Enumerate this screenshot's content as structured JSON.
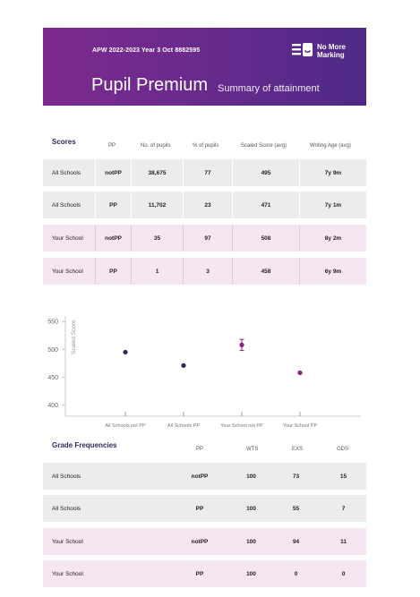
{
  "header": {
    "meta": "APW 2022-2023 Year 3 Oct 8882595",
    "title": "Pupil Premium",
    "subtitle": "Summary of attainment",
    "logo_line1": "No More",
    "logo_line2": "Marking"
  },
  "scores": {
    "section_title": "Scores",
    "columns": [
      "PP",
      "No. of pupils",
      "% of pupils",
      "Scaled Score (avg)",
      "Writing Age (avg)"
    ],
    "rows": [
      {
        "label": "All Schools",
        "pp": "notPP",
        "pupils": "38,675",
        "pct": "77",
        "score": "495",
        "age": "7y 9m"
      },
      {
        "label": "All Schools",
        "pp": "PP",
        "pupils": "11,702",
        "pct": "23",
        "score": "471",
        "age": "7y 1m"
      },
      {
        "label": "Your School",
        "pp": "notPP",
        "pupils": "35",
        "pct": "97",
        "score": "508",
        "age": "8y 2m"
      },
      {
        "label": "Your School",
        "pp": "PP",
        "pupils": "1",
        "pct": "3",
        "score": "458",
        "age": "6y 9m"
      }
    ]
  },
  "chart_data": {
    "type": "scatter",
    "ylabel": "Scaled Score",
    "ylim": [
      380,
      560
    ],
    "yticks": [
      400,
      450,
      500,
      550
    ],
    "categories": [
      "All Schools not PP",
      "All Schools PP",
      "Your School not PP",
      "Your School PP"
    ],
    "values": [
      495,
      471,
      508,
      458
    ],
    "error_bars": [
      null,
      null,
      [
        498,
        518
      ],
      null
    ],
    "colors": [
      "#2e2660",
      "#2e2660",
      "#8a1f7d",
      "#8a1f7d"
    ],
    "grid": false
  },
  "grades": {
    "section_title": "Grade Frequencies",
    "columns": [
      "PP",
      "WTS",
      "EXS",
      "GDS"
    ],
    "rows": [
      {
        "label": "All Schools",
        "pp": "notPP",
        "wts": "100",
        "exs": "73",
        "gds": "15"
      },
      {
        "label": "All Schools",
        "pp": "PP",
        "wts": "100",
        "exs": "55",
        "gds": "7"
      },
      {
        "label": "Your School",
        "pp": "notPP",
        "wts": "100",
        "exs": "94",
        "gds": "11"
      },
      {
        "label": "Your School",
        "pp": "PP",
        "wts": "100",
        "exs": "0",
        "gds": "0"
      }
    ]
  },
  "colors": {
    "banner_start": "#7d2a8d",
    "banner_end": "#4e2a86",
    "row_grey": "#ececec",
    "row_pink": "#f6e6f1",
    "dot_all": "#2e2660",
    "dot_school": "#8a1f7d"
  }
}
